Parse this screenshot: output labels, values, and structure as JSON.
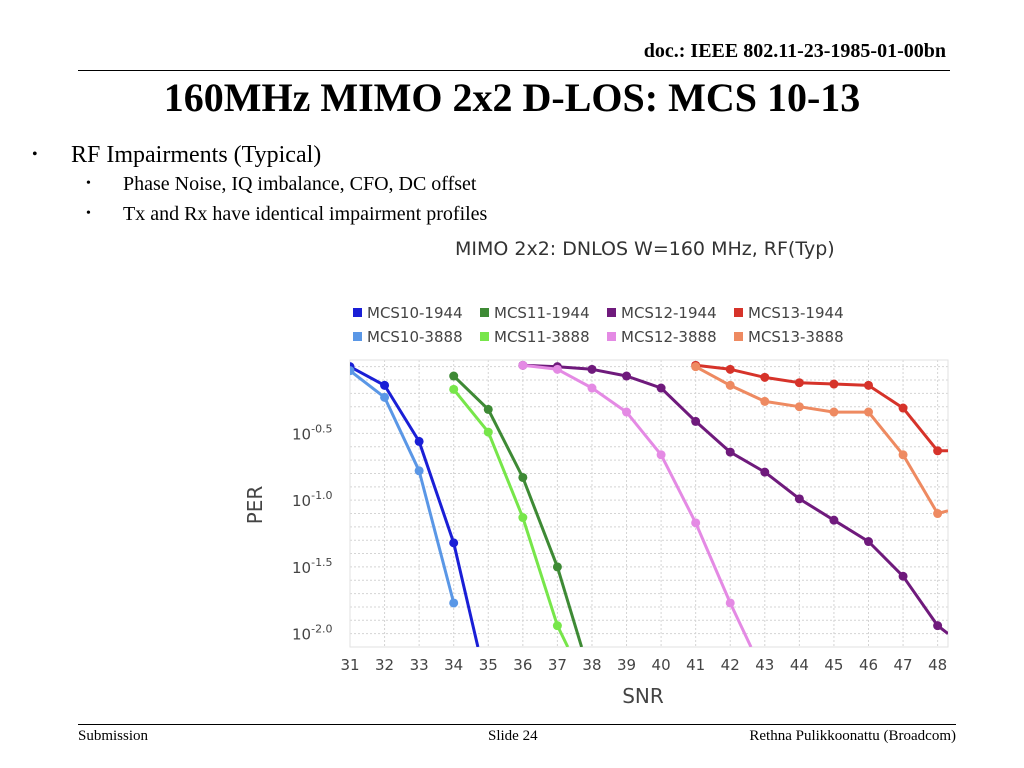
{
  "header": {
    "doc_id": "doc.: IEEE 802.11-23-1985-01-00bn",
    "title": "160MHz MIMO 2x2 D-LOS: MCS 10-13"
  },
  "bullets": [
    {
      "text": "RF Impairments (Typical)",
      "level": 1
    },
    {
      "text": "Phase Noise, IQ imbalance, CFO, DC offset",
      "level": 2
    },
    {
      "text": "Tx and Rx have identical impairment profiles",
      "level": 2
    }
  ],
  "bullet_glyph": "•",
  "footer": {
    "left": "Submission",
    "center": "Slide 24",
    "right": "Rethna Pulikkoonattu (Broadcom)"
  },
  "chart_data": {
    "type": "line",
    "title": "MIMO 2x2: DNLOS W=160 MHz, RF(Typ)",
    "xlabel": "SNR",
    "ylabel": "PER",
    "y_scale": "log10",
    "x_ticks": [
      31,
      32,
      33,
      34,
      35,
      36,
      37,
      38,
      39,
      40,
      41,
      42,
      43,
      44,
      45,
      46,
      47,
      48
    ],
    "y_ticks": [
      {
        "base": "10",
        "exp": "-0.5",
        "value": -0.5
      },
      {
        "base": "10",
        "exp": "-1.0",
        "value": -1.0
      },
      {
        "base": "10",
        "exp": "-1.5",
        "value": -1.5
      },
      {
        "base": "10",
        "exp": "-2.0",
        "value": -2.0
      }
    ],
    "xlim": [
      31,
      48.3
    ],
    "ylim_log10": [
      -2.1,
      0.05
    ],
    "grid": true,
    "legend_position": "top",
    "series": [
      {
        "name": "MCS10-1944",
        "color": "#1a1fd6",
        "x": [
          31,
          32,
          33,
          34,
          34.7
        ],
        "y": [
          0.0,
          -0.14,
          -0.56,
          -1.32,
          -2.1
        ]
      },
      {
        "name": "MCS11-1944",
        "color": "#3e8a35",
        "x": [
          34,
          35,
          36,
          37,
          37.7
        ],
        "y": [
          -0.07,
          -0.32,
          -0.83,
          -1.5,
          -2.1
        ]
      },
      {
        "name": "MCS12-1944",
        "color": "#6f1a7c",
        "x": [
          36,
          37,
          38,
          39,
          40,
          41,
          42,
          43,
          44,
          45,
          46,
          47,
          48,
          48.3
        ],
        "y": [
          0.01,
          0.0,
          -0.02,
          -0.07,
          -0.16,
          -0.41,
          -0.64,
          -0.79,
          -0.99,
          -1.15,
          -1.31,
          -1.57,
          -1.94,
          -2.0
        ]
      },
      {
        "name": "MCS13-1944",
        "color": "#d6332a",
        "x": [
          41,
          42,
          43,
          44,
          45,
          46,
          47,
          48,
          48.3
        ],
        "y": [
          0.01,
          -0.02,
          -0.08,
          -0.12,
          -0.13,
          -0.14,
          -0.31,
          -0.63,
          -0.63
        ]
      },
      {
        "name": "MCS10-3888",
        "color": "#5a97e6",
        "x": [
          31,
          32,
          33,
          34
        ],
        "y": [
          -0.03,
          -0.23,
          -0.78,
          -1.77
        ]
      },
      {
        "name": "MCS11-3888",
        "color": "#77e64a",
        "x": [
          34,
          35,
          36,
          37,
          37.3
        ],
        "y": [
          -0.17,
          -0.49,
          -1.13,
          -1.94,
          -2.1
        ]
      },
      {
        "name": "MCS12-3888",
        "color": "#e48ae4",
        "x": [
          36,
          37,
          38,
          39,
          40,
          41,
          42,
          42.6
        ],
        "y": [
          0.01,
          -0.02,
          -0.16,
          -0.34,
          -0.66,
          -1.17,
          -1.77,
          -2.1
        ]
      },
      {
        "name": "MCS13-3888",
        "color": "#ee8a61",
        "x": [
          41,
          42,
          43,
          44,
          45,
          46,
          47,
          48,
          48.3
        ],
        "y": [
          0.0,
          -0.14,
          -0.26,
          -0.3,
          -0.34,
          -0.34,
          -0.66,
          -1.1,
          -1.08
        ]
      }
    ],
    "legend_order": [
      "MCS10-1944",
      "MCS11-1944",
      "MCS12-1944",
      "MCS13-1944",
      "MCS10-3888",
      "MCS11-3888",
      "MCS12-3888",
      "MCS13-3888"
    ]
  }
}
